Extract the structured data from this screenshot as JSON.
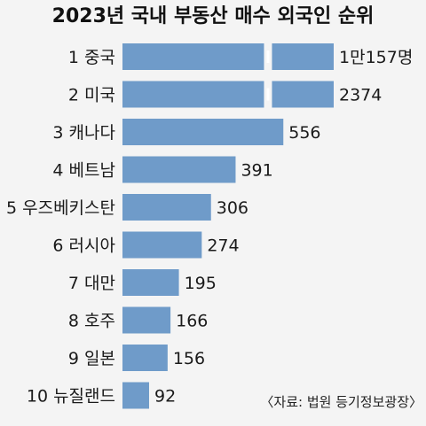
{
  "chart_data": {
    "type": "bar",
    "orientation": "horizontal",
    "title": "2023년 국내 부동산 매수 외국인 순위",
    "categories": [
      "1 중국",
      "2 미국",
      "3 캐나다",
      "4 베트남",
      "5 우즈베키스탄",
      "6 러시아",
      "7 대만",
      "8 호주",
      "9 일본",
      "10 뉴질랜드"
    ],
    "values": [
      10157,
      2374,
      556,
      391,
      306,
      274,
      195,
      166,
      156,
      92
    ],
    "value_labels": [
      "1만157명",
      "2374",
      "556",
      "391",
      "306",
      "274",
      "195",
      "166",
      "156",
      "92"
    ],
    "axis_break": "first bar truncated with break marks",
    "source": "〈자료: 법원 등기정보광장〉",
    "bar_color": "#6f9bc9",
    "background": "#f4f4f4",
    "grid": false,
    "legend": "none"
  }
}
